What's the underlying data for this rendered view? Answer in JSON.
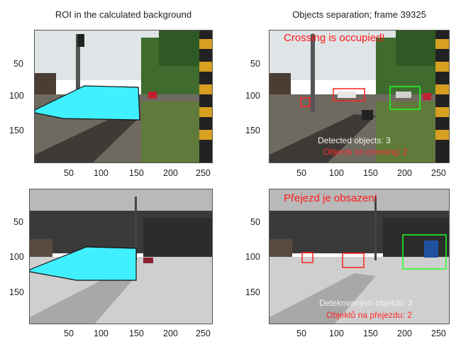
{
  "panels": {
    "top_left": {
      "title": "ROI in the calculated background"
    },
    "top_right": {
      "title": "Objects separation; frame 39325",
      "warning": "Crossing is occupied!",
      "detected": "Detected objects: 3",
      "on_crossing": "Objects on crossing: 2"
    },
    "bottom_right": {
      "warning": "Přejezd je obsazen!",
      "detected": "Detekovaných objektů: 3",
      "on_crossing": "Objektů na přejezdu: 2"
    }
  },
  "axes": {
    "x_ticks": [
      "50",
      "100",
      "150",
      "200",
      "250"
    ],
    "y_ticks": [
      "50",
      "100",
      "150"
    ]
  },
  "colors": {
    "roi": "#40f0ff",
    "box_red": "#ff2020",
    "box_green": "#22ff22",
    "text_red": "#ff1a1a"
  }
}
